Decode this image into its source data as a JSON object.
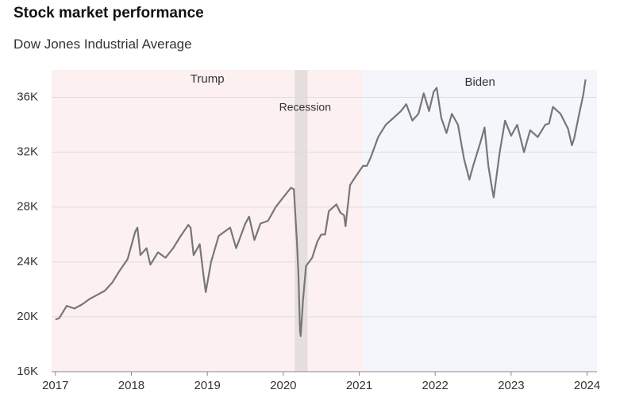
{
  "chart_data": {
    "type": "line",
    "title": "Stock market performance",
    "subtitle": "Dow Jones Industrial Average",
    "x": [
      2017.0,
      2017.05,
      2017.15,
      2017.25,
      2017.35,
      2017.45,
      2017.55,
      2017.65,
      2017.75,
      2017.85,
      2017.95,
      2018.05,
      2018.08,
      2018.12,
      2018.2,
      2018.25,
      2018.35,
      2018.45,
      2018.55,
      2018.65,
      2018.75,
      2018.78,
      2018.82,
      2018.9,
      2018.95,
      2018.98,
      2019.05,
      2019.15,
      2019.3,
      2019.38,
      2019.5,
      2019.55,
      2019.62,
      2019.7,
      2019.8,
      2019.9,
      2020.0,
      2020.1,
      2020.14,
      2020.18,
      2020.2,
      2020.22,
      2020.23,
      2020.26,
      2020.3,
      2020.38,
      2020.45,
      2020.5,
      2020.55,
      2020.6,
      2020.7,
      2020.75,
      2020.8,
      2020.82,
      2020.88,
      2020.95,
      2021.0,
      2021.05,
      2021.1,
      2021.15,
      2021.25,
      2021.35,
      2021.45,
      2021.55,
      2021.62,
      2021.7,
      2021.78,
      2021.85,
      2021.92,
      2021.98,
      2022.02,
      2022.08,
      2022.15,
      2022.22,
      2022.3,
      2022.38,
      2022.45,
      2022.5,
      2022.6,
      2022.65,
      2022.7,
      2022.75,
      2022.77,
      2022.85,
      2022.92,
      2023.0,
      2023.08,
      2023.17,
      2023.25,
      2023.35,
      2023.45,
      2023.5,
      2023.55,
      2023.65,
      2023.75,
      2023.8,
      2023.83,
      2023.9,
      2023.95,
      2023.98
    ],
    "series": [
      {
        "name": "Dow Jones Industrial Average",
        "color": "#777777",
        "values": [
          19800,
          19900,
          20800,
          20600,
          20900,
          21300,
          21600,
          21900,
          22500,
          23400,
          24200,
          26200,
          26500,
          24500,
          25000,
          23800,
          24700,
          24300,
          25000,
          25900,
          26700,
          26500,
          24500,
          25300,
          23000,
          21800,
          24000,
          25900,
          26500,
          25000,
          26800,
          27300,
          25600,
          26800,
          27000,
          28000,
          28700,
          29400,
          29300,
          25400,
          23000,
          19000,
          18600,
          21200,
          23700,
          24300,
          25500,
          26000,
          26000,
          27700,
          28200,
          27600,
          27400,
          26600,
          29600,
          30200,
          30600,
          31000,
          31000,
          31600,
          33100,
          34000,
          34500,
          35000,
          35500,
          34300,
          34800,
          36300,
          35000,
          36400,
          36700,
          34500,
          33400,
          34800,
          34000,
          31500,
          30000,
          31000,
          32800,
          33800,
          31000,
          29300,
          28700,
          32000,
          34300,
          33200,
          34000,
          32000,
          33600,
          33100,
          34000,
          34100,
          35300,
          34800,
          33700,
          32500,
          33000,
          34900,
          36200,
          37300
        ]
      }
    ],
    "regions": [
      {
        "label": "Trump",
        "start": 2016.95,
        "end": 2021.05,
        "color": "#fcf1f0"
      },
      {
        "label": "Biden",
        "start": 2021.05,
        "end": 2024.13,
        "color": "#f5f6fb"
      },
      {
        "label": "Recession",
        "start": 2020.15,
        "end": 2020.32,
        "color": "#e6dfde"
      }
    ],
    "xlim": [
      2016.95,
      2024.13
    ],
    "xticks": [
      2017,
      2018,
      2019,
      2020,
      2021,
      2022,
      2023,
      2024
    ],
    "ylim": [
      16000,
      38000
    ],
    "yticks": [
      {
        "value": 16000,
        "label": "16K"
      },
      {
        "value": 20000,
        "label": "20K"
      },
      {
        "value": 24000,
        "label": "24K"
      },
      {
        "value": 28000,
        "label": "28K"
      },
      {
        "value": 32000,
        "label": "32K"
      },
      {
        "value": 36000,
        "label": "36K"
      }
    ],
    "grid": true
  }
}
